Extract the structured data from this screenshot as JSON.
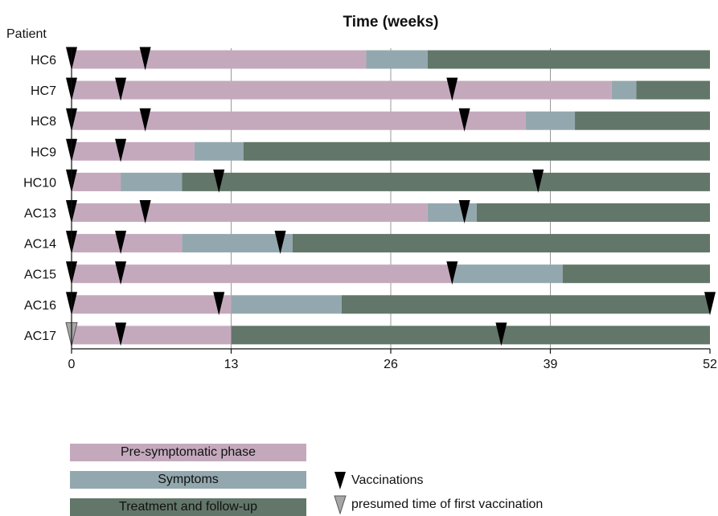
{
  "chart_data": {
    "type": "bar",
    "title": "Time (weeks)",
    "ylabel": "Patient",
    "xlim": [
      0,
      52
    ],
    "xticks": [
      "0",
      "13",
      "26",
      "39",
      "52"
    ],
    "phase_names": [
      "Pre-symptomatic phase",
      "Symptoms",
      "Treatment and follow-up"
    ],
    "colors": {
      "pre": "#c4a9bd",
      "symptoms": "#93a8ae",
      "treatment": "#627669",
      "grid": "#999999",
      "vaccination": "#000000",
      "presumed": "#a6a6a6"
    },
    "patients": [
      {
        "id": "HC6",
        "phases": [
          {
            "phase": "pre",
            "start": 0,
            "end": 24
          },
          {
            "phase": "symptoms",
            "start": 24,
            "end": 29
          },
          {
            "phase": "treatment",
            "start": 29,
            "end": 52
          }
        ],
        "vaccinations": [
          0,
          6
        ],
        "presumed": []
      },
      {
        "id": "HC7",
        "phases": [
          {
            "phase": "pre",
            "start": 0,
            "end": 44
          },
          {
            "phase": "symptoms",
            "start": 44,
            "end": 46
          },
          {
            "phase": "treatment",
            "start": 46,
            "end": 52
          }
        ],
        "vaccinations": [
          0,
          4,
          31
        ],
        "presumed": []
      },
      {
        "id": "HC8",
        "phases": [
          {
            "phase": "pre",
            "start": 0,
            "end": 37
          },
          {
            "phase": "symptoms",
            "start": 37,
            "end": 41
          },
          {
            "phase": "treatment",
            "start": 41,
            "end": 52
          }
        ],
        "vaccinations": [
          0,
          6,
          32
        ],
        "presumed": []
      },
      {
        "id": "HC9",
        "phases": [
          {
            "phase": "pre",
            "start": 0,
            "end": 10
          },
          {
            "phase": "symptoms",
            "start": 10,
            "end": 14
          },
          {
            "phase": "treatment",
            "start": 14,
            "end": 52
          }
        ],
        "vaccinations": [
          0,
          4
        ],
        "presumed": []
      },
      {
        "id": "HC10",
        "phases": [
          {
            "phase": "pre",
            "start": 0,
            "end": 4
          },
          {
            "phase": "symptoms",
            "start": 4,
            "end": 9
          },
          {
            "phase": "treatment",
            "start": 9,
            "end": 52
          }
        ],
        "vaccinations": [
          0,
          12,
          38
        ],
        "presumed": []
      },
      {
        "id": "AC13",
        "phases": [
          {
            "phase": "pre",
            "start": 0,
            "end": 29
          },
          {
            "phase": "symptoms",
            "start": 29,
            "end": 33
          },
          {
            "phase": "treatment",
            "start": 33,
            "end": 52
          }
        ],
        "vaccinations": [
          0,
          6,
          32
        ],
        "presumed": []
      },
      {
        "id": "AC14",
        "phases": [
          {
            "phase": "pre",
            "start": 0,
            "end": 9
          },
          {
            "phase": "symptoms",
            "start": 9,
            "end": 18
          },
          {
            "phase": "treatment",
            "start": 18,
            "end": 52
          }
        ],
        "vaccinations": [
          0,
          4,
          17
        ],
        "presumed": []
      },
      {
        "id": "AC15",
        "phases": [
          {
            "phase": "pre",
            "start": 0,
            "end": 31
          },
          {
            "phase": "symptoms",
            "start": 31,
            "end": 40
          },
          {
            "phase": "treatment",
            "start": 40,
            "end": 52
          }
        ],
        "vaccinations": [
          0,
          4,
          31
        ],
        "presumed": []
      },
      {
        "id": "AC16",
        "phases": [
          {
            "phase": "pre",
            "start": 0,
            "end": 13
          },
          {
            "phase": "symptoms",
            "start": 13,
            "end": 22
          },
          {
            "phase": "treatment",
            "start": 22,
            "end": 52
          }
        ],
        "vaccinations": [
          0,
          12,
          52
        ],
        "presumed": []
      },
      {
        "id": "AC17",
        "phases": [
          {
            "phase": "pre",
            "start": 0,
            "end": 13
          },
          {
            "phase": "treatment",
            "start": 13,
            "end": 52
          }
        ],
        "vaccinations": [
          4,
          35
        ],
        "presumed": [
          0
        ]
      }
    ],
    "marker_legend": {
      "vaccination": "Vaccinations",
      "presumed": "presumed time of first vaccination"
    }
  }
}
